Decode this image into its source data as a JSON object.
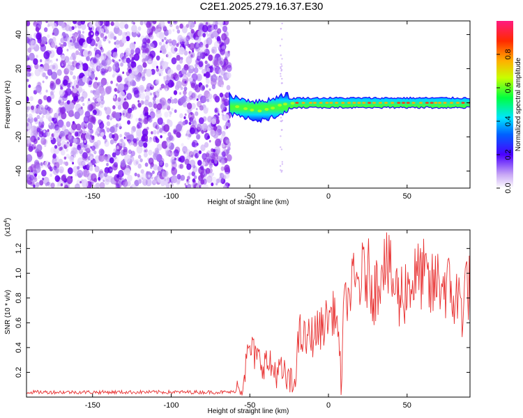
{
  "title": "C2E1.2025.279.16.37.E30",
  "colors": {
    "spectrogram_noise": "#8a2be2",
    "snr_line": "#e83030",
    "frame": "#000000"
  },
  "colorbar": {
    "label": "Normalized spectral amplitude",
    "ticks": [
      "0.0",
      "0.2",
      "0.4",
      "0.6",
      "0.8"
    ],
    "tick_values": [
      0.0,
      0.2,
      0.4,
      0.6,
      0.8
    ],
    "range": [
      0,
      1
    ]
  },
  "chart_data": [
    {
      "type": "heatmap",
      "xlabel": "Height of straight line (km)",
      "ylabel": "Frequency (Hz)",
      "xlim": [
        -192,
        90
      ],
      "ylim": [
        -50,
        48
      ],
      "x_ticks": [
        -150,
        -100,
        -50,
        0,
        50
      ],
      "x_tick_labels": [
        "-150",
        "-100",
        "-50",
        "0",
        "50"
      ],
      "y_ticks": [
        -40,
        -20,
        0,
        20,
        40
      ],
      "y_tick_labels": [
        "-40",
        "-20",
        "0",
        "20",
        "40"
      ],
      "noise_region_x": [
        -192,
        -63
      ],
      "signal_band": [
        {
          "x": -63,
          "f_center": -1,
          "amplitude": 0.35
        },
        {
          "x": -55,
          "f_center": -3,
          "amplitude": 0.5
        },
        {
          "x": -45,
          "f_center": -5,
          "amplitude": 0.45
        },
        {
          "x": -35,
          "f_center": -3,
          "amplitude": 0.5
        },
        {
          "x": -30,
          "f_center": -1,
          "amplitude": 0.55
        },
        {
          "x": -20,
          "f_center": 0,
          "amplitude": 0.9
        },
        {
          "x": 0,
          "f_center": 0,
          "amplitude": 0.95
        },
        {
          "x": 30,
          "f_center": 0,
          "amplitude": 0.95
        },
        {
          "x": 60,
          "f_center": 0,
          "amplitude": 0.95
        },
        {
          "x": 90,
          "f_center": 0,
          "amplitude": 0.95
        }
      ],
      "grid": false
    },
    {
      "type": "line",
      "xlabel": "Height of straight line (km)",
      "ylabel": "SNR (10 * v/v)",
      "y_multiplier": "(x10",
      "y_multiplier_exp": "4",
      "xlim": [
        -192,
        90
      ],
      "ylim": [
        0.0,
        1.35
      ],
      "x_ticks": [
        -150,
        -100,
        -50,
        0,
        50
      ],
      "x_tick_labels": [
        "-150",
        "-100",
        "-50",
        "0",
        "50"
      ],
      "y_ticks": [
        0.2,
        0.4,
        0.6,
        0.8,
        1.0,
        1.2
      ],
      "y_tick_labels": [
        "0.2",
        "0.4",
        "0.6",
        "0.8",
        "1.0",
        "1.2"
      ],
      "series": [
        {
          "x": [
            -192,
            -150,
            -100,
            -75,
            -60,
            -55,
            -50,
            -45,
            -40,
            -35,
            -30,
            -25,
            -22,
            -20,
            -18,
            -15,
            -10,
            -5,
            0,
            5,
            8,
            10,
            15,
            20,
            25,
            30,
            35,
            40,
            45,
            50,
            55,
            60,
            65,
            70,
            75,
            80,
            85,
            88,
            90
          ],
          "values": [
            0.04,
            0.04,
            0.04,
            0.04,
            0.04,
            0.12,
            0.4,
            0.3,
            0.28,
            0.22,
            0.2,
            0.12,
            0.08,
            0.35,
            0.5,
            0.45,
            0.5,
            0.55,
            0.65,
            0.7,
            0.1,
            0.75,
            0.85,
            0.95,
            1.0,
            0.85,
            1.15,
            0.95,
            0.8,
            0.9,
            0.95,
            1.0,
            0.85,
            0.95,
            0.9,
            0.8,
            0.75,
            0.95,
            0.85
          ]
        }
      ],
      "grid": false
    }
  ]
}
